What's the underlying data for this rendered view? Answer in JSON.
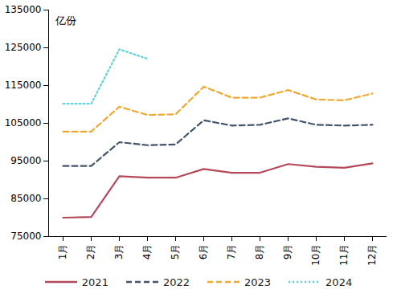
{
  "chart_data": {
    "type": "line",
    "y_label": "亿份",
    "categories": [
      "1月",
      "2月",
      "3月",
      "4月",
      "5月",
      "6月",
      "7月",
      "8月",
      "9月",
      "10月",
      "11月",
      "12月"
    ],
    "series": [
      {
        "name": "2021",
        "color": "#b5495b",
        "line_style": "solid",
        "values": [
          80000,
          80200,
          91000,
          90600,
          90600,
          92900,
          91900,
          91900,
          94200,
          93500,
          93200,
          94400
        ]
      },
      {
        "name": "2022",
        "color": "#44546a",
        "line_style": "dashed",
        "values": [
          93700,
          93700,
          100000,
          99200,
          99400,
          105800,
          104400,
          104600,
          106300,
          104600,
          104400,
          104600
        ]
      },
      {
        "name": "2023",
        "color": "#f0a830",
        "line_style": "dashed",
        "values": [
          102800,
          102800,
          109400,
          107200,
          107400,
          114700,
          111800,
          111800,
          113800,
          111300,
          111100,
          112900
        ]
      },
      {
        "name": "2024",
        "color": "#5fd3d8",
        "line_style": "dotted",
        "values": [
          110200,
          110200,
          124600,
          122100,
          null,
          null,
          null,
          null,
          null,
          null,
          null,
          null
        ]
      }
    ],
    "ylim": [
      75000,
      135000
    ],
    "yticks": [
      75000,
      85000,
      95000,
      105000,
      115000,
      125000,
      135000
    ],
    "grid": false,
    "legend": "bottom"
  }
}
